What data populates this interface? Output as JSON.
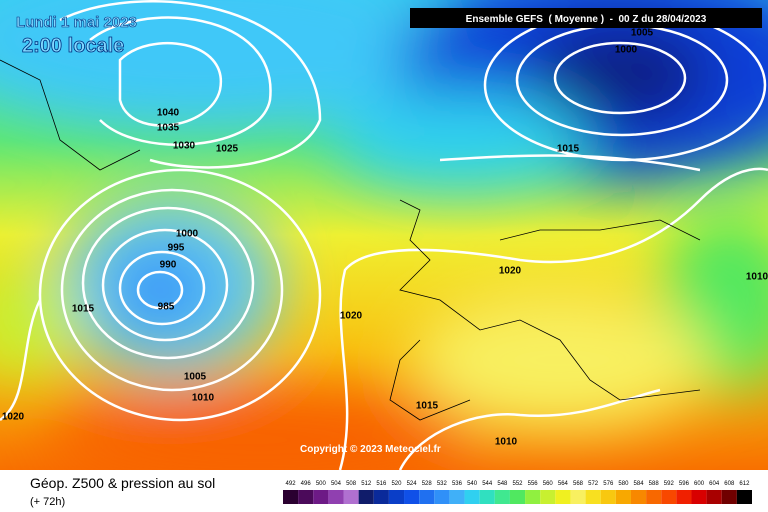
{
  "header": {
    "date": "Lundi 1 mai 2023",
    "time": "2:00 locale",
    "model": "Ensemble GEFS  ( Moyenne )  -  00 Z du 28/04/2023"
  },
  "isobar_labels": [
    1005,
    1000,
    1015,
    1040,
    1035,
    1030,
    1025,
    1000,
    995,
    990,
    985,
    1015,
    1020,
    1020,
    1005,
    1010,
    1015,
    1020,
    1010,
    1010
  ],
  "copyright": "Copyright © 2023 Meteociel.fr",
  "footer": {
    "title": "Géop. Z500 & pression au sol",
    "lead": "(+ 72h)"
  },
  "scale": {
    "values": [
      492,
      496,
      500,
      504,
      508,
      512,
      516,
      520,
      524,
      528,
      532,
      536,
      540,
      544,
      548,
      552,
      556,
      560,
      564,
      568,
      572,
      576,
      580,
      584,
      588,
      592,
      596,
      600,
      604,
      608,
      612
    ],
    "colors": [
      "#2a0030",
      "#4b0a5a",
      "#6d1a86",
      "#9040b0",
      "#b070d0",
      "#101c6a",
      "#0a2a9a",
      "#0a3ec8",
      "#1050e8",
      "#2070f0",
      "#3090f8",
      "#40b0f8",
      "#30d0f0",
      "#30e0c0",
      "#40e890",
      "#50e860",
      "#90f040",
      "#c8f030",
      "#f0f020",
      "#f8f060",
      "#f8e020",
      "#f8c810",
      "#f8a800",
      "#f88800",
      "#f86800",
      "#f84800",
      "#f02000",
      "#d80000",
      "#a80000",
      "#700000",
      "#000000"
    ]
  }
}
